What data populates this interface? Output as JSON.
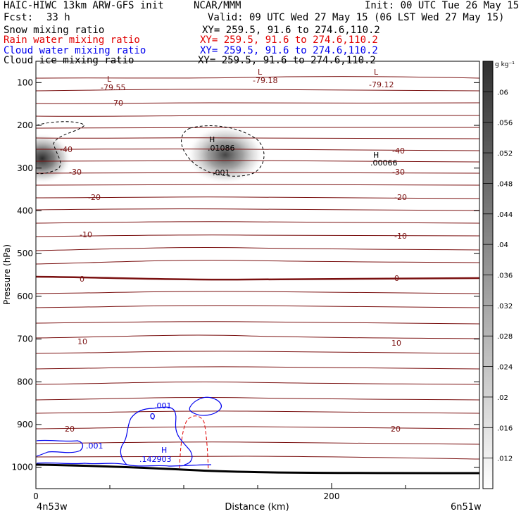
{
  "header": {
    "model": "HAIC-HIWC 13km ARW-GFS init",
    "org": "NCAR/MMM",
    "init": "Init: 00 UTC Tue 26 May 15",
    "fcst_label": "Fcst:",
    "fcst_value": "33 h",
    "valid": "Valid: 09 UTC Wed 27 May 15 (06 LST Wed 27 May 15)",
    "fields": [
      {
        "name": "Snow mixing ratio",
        "xy": "XY= 259.5, 91.6 to 274.6,110.2",
        "color": "#000000"
      },
      {
        "name": "Rain water mixing ratio",
        "xy": "XY= 259.5, 91.6 to 274.6,110.2",
        "color": "#e00000"
      },
      {
        "name": "Cloud water mixing ratio",
        "xy": "XY= 259.5, 91.6 to 274.6,110.2",
        "color": "#0000ee"
      },
      {
        "name": "Cloud ice mixing ratio",
        "xy": "XY= 259.5, 91.6 to 274.6,110.2",
        "color": "#000000"
      }
    ]
  },
  "chart_data": {
    "type": "heatmap",
    "title": "",
    "xlabel": "Distance (km)",
    "ylabel": "Pressure (hPa)",
    "x_ticks": [
      "0",
      "200"
    ],
    "x_end_labels": [
      "4n53w",
      "6n51w"
    ],
    "xlim": [
      0,
      300
    ],
    "y_ticks": [
      "100",
      "200",
      "300",
      "400",
      "500",
      "600",
      "700",
      "800",
      "900",
      "1000"
    ],
    "ylim": [
      1050,
      50
    ],
    "colorbar": {
      "unit": "g kg⁻¹",
      "ticks": [
        ".012",
        ".016",
        ".02",
        ".024",
        ".028",
        ".032",
        ".036",
        ".04",
        ".044",
        ".048",
        ".052",
        ".056",
        ".06"
      ]
    },
    "temperature_labels": [
      "-79.55",
      "-79.18",
      "-79.12",
      "-70",
      "-40",
      "-40",
      "-30",
      "-30",
      "-20",
      "-20",
      "-10",
      "-10",
      "0",
      "0",
      "10",
      "10",
      "20",
      "20"
    ],
    "extrema": [
      {
        "type": "L",
        "value": "-79.55",
        "x": 49,
        "p": 113
      },
      {
        "type": "L",
        "value": "-79.18",
        "x": 159,
        "p": 103
      },
      {
        "type": "L",
        "value": "-79.12",
        "x": 238,
        "p": 103
      },
      {
        "type": "H",
        "value": ".01086",
        "x": 124,
        "p": 257
      },
      {
        "type": "H",
        "value": ".00066",
        "x": 238,
        "p": 282
      },
      {
        "type": "H",
        "value": ".142903",
        "x": 88,
        "p": 981
      }
    ],
    "snow_maxima": [
      {
        "x": 0,
        "p": 280,
        "value_gkg": 0.05
      },
      {
        "x": 130,
        "p": 280,
        "value_gkg": 0.062
      }
    ],
    "contour_labels": {
      "snow": [
        ".001"
      ],
      "cloud_water": [
        ".001",
        ".001"
      ]
    }
  }
}
